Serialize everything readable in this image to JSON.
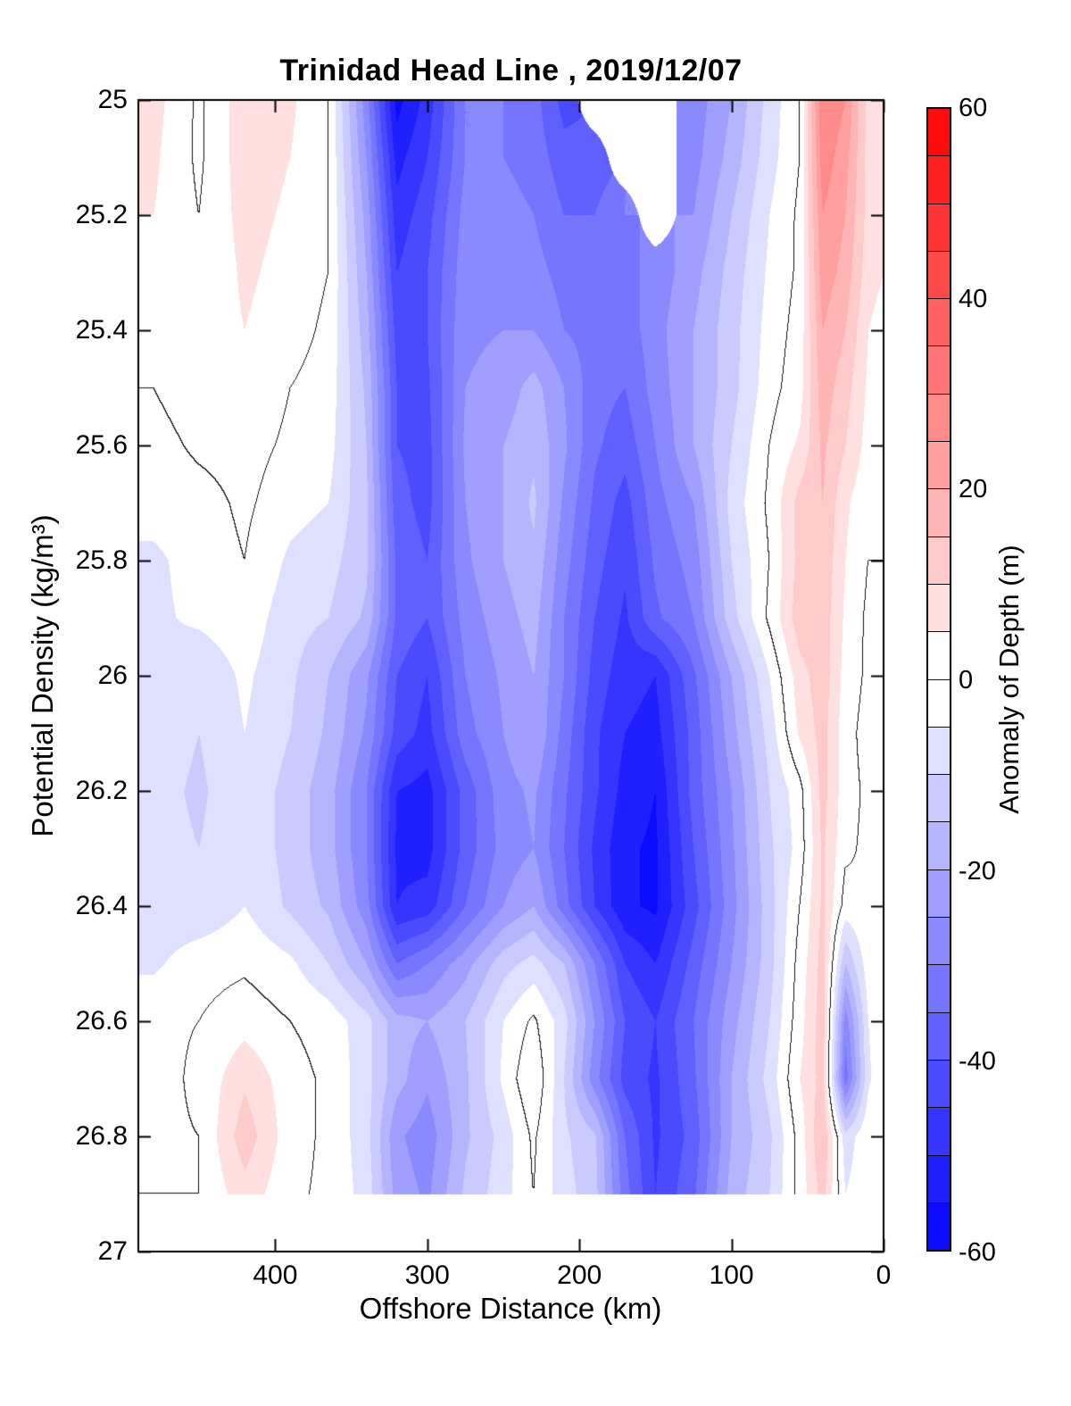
{
  "title": "Trinidad Head Line , 2019/12/07",
  "axes": {
    "xlabel": "Offshore Distance (km)",
    "ylabel": "Potential Density (kg/m³)",
    "x_tick_labels": [
      "400",
      "300",
      "200",
      "100",
      "0"
    ],
    "x_tick_values": [
      400,
      300,
      200,
      100,
      0
    ],
    "y_tick_labels": [
      "25",
      "25.2",
      "25.4",
      "25.6",
      "25.8",
      "26",
      "26.2",
      "26.4",
      "26.6",
      "26.8",
      "27"
    ],
    "y_tick_values": [
      25,
      25.2,
      25.4,
      25.6,
      25.8,
      26,
      26.2,
      26.4,
      26.6,
      26.8,
      27
    ]
  },
  "colorbar": {
    "label": "Anomaly of Depth (m)",
    "tick_labels": [
      "60",
      "40",
      "20",
      "0",
      "-20",
      "-40",
      "-60"
    ],
    "tick_values": [
      60,
      40,
      20,
      0,
      -20,
      -40,
      -60
    ],
    "min": -60,
    "max": 60,
    "step": 5,
    "color_negative": "#0000ff",
    "color_zero": "#ffffff",
    "color_positive": "#ff0000"
  },
  "chart_data": {
    "type": "heatmap",
    "subtype": "filled-contour-section",
    "title": "Trinidad Head Line , 2019/12/07",
    "xlabel": "Offshore Distance (km)",
    "ylabel": "Potential Density (kg/m³)",
    "value_label": "Anomaly of Depth (m)",
    "x_range": [
      0,
      490
    ],
    "x_axis_reversed": true,
    "y_range": [
      25,
      27
    ],
    "y_axis_increases_downward": true,
    "data_y_max": 26.9,
    "contour_interval": 5,
    "value_range": [
      -60,
      60
    ],
    "zero_contour_color": "#000000",
    "grid_note": "values = Anomaly of Depth (m) sampled on x_km (offshore distance) by y_density grid; null = missing data (white)",
    "x_km": [
      480,
      450,
      420,
      390,
      365,
      340,
      320,
      300,
      275,
      250,
      230,
      210,
      190,
      170,
      150,
      125,
      100,
      75,
      55,
      40,
      25,
      10,
      0
    ],
    "y_density": [
      25.0,
      25.1,
      25.2,
      25.3,
      25.4,
      25.5,
      25.6,
      25.7,
      25.8,
      25.9,
      26.0,
      26.1,
      26.2,
      26.3,
      26.4,
      26.5,
      26.6,
      26.7,
      26.8,
      26.9
    ],
    "values": [
      [
        7,
        -1,
        8,
        6,
        0,
        -28,
        -57,
        -48,
        -30,
        -30,
        -33,
        -42,
        null,
        null,
        null,
        -28,
        -20,
        -8,
        0,
        30,
        25,
        8,
        5
      ],
      [
        6,
        -1,
        8,
        5,
        0,
        -25,
        -52,
        -45,
        -30,
        -30,
        -32,
        -38,
        -38,
        null,
        null,
        -27,
        -18,
        -7,
        0,
        28,
        22,
        8,
        5
      ],
      [
        5,
        0,
        7,
        4,
        0,
        -22,
        -48,
        -42,
        -28,
        -28,
        -30,
        -35,
        -35,
        -30,
        null,
        -25,
        -15,
        -5,
        1,
        25,
        20,
        8,
        6
      ],
      [
        4,
        0,
        6,
        3,
        0,
        -20,
        -45,
        -40,
        -27,
        -27,
        -28,
        -32,
        -33,
        -32,
        -28,
        -22,
        -13,
        -4,
        1,
        23,
        18,
        7,
        5
      ],
      [
        3,
        2,
        5,
        2,
        -1,
        -18,
        -42,
        -40,
        -26,
        -25,
        -25,
        -30,
        -32,
        -33,
        -27,
        -20,
        -12,
        -3,
        2,
        20,
        15,
        5,
        3
      ],
      [
        0,
        3,
        4,
        0,
        -2,
        -16,
        -40,
        -41,
        -25,
        -23,
        -18,
        -25,
        -33,
        -35,
        -28,
        -20,
        -12,
        -2,
        3,
        18,
        12,
        4,
        2
      ],
      [
        -2,
        1,
        2,
        -1,
        -3,
        -15,
        -40,
        -42,
        -24,
        -20,
        -16,
        -24,
        -34,
        -38,
        -30,
        -20,
        -10,
        0,
        6,
        16,
        10,
        3,
        1
      ],
      [
        -3,
        -2,
        1,
        -3,
        -5,
        -14,
        -38,
        -42,
        -25,
        -20,
        -14,
        -26,
        -36,
        -42,
        -32,
        -25,
        -8,
        1,
        12,
        15,
        6,
        1,
        0
      ],
      [
        -6,
        -3,
        0,
        -6,
        -8,
        -14,
        -36,
        -40,
        -26,
        -20,
        -16,
        -28,
        -38,
        -44,
        -34,
        -28,
        -10,
        0,
        12,
        14,
        5,
        0,
        0
      ],
      [
        -6,
        -4,
        -2,
        -8,
        -10,
        -16,
        -36,
        -40,
        -28,
        -22,
        -18,
        -30,
        -40,
        -46,
        -36,
        -30,
        -12,
        1,
        13,
        13,
        4,
        -1,
        0
      ],
      [
        -6,
        -9,
        -4,
        -9,
        -15,
        -24,
        -40,
        -45,
        -30,
        -24,
        -20,
        -30,
        -42,
        -48,
        -50,
        -36,
        -20,
        -5,
        8,
        13,
        3,
        -1,
        0
      ],
      [
        -7,
        -10,
        -5,
        -10,
        -16,
        -26,
        -42,
        -47,
        -32,
        -25,
        -20,
        -32,
        -44,
        -50,
        -52,
        -38,
        -22,
        -8,
        6,
        12,
        2,
        -2,
        0
      ],
      [
        -8,
        -11,
        -6,
        -12,
        -18,
        -30,
        -50,
        -52,
        -38,
        -27,
        -24,
        -34,
        -44,
        -52,
        -55,
        -38,
        -25,
        -10,
        -2,
        12,
        2,
        -1,
        0
      ],
      [
        -8,
        -10,
        -6,
        -12,
        -18,
        -30,
        -51,
        -52,
        -38,
        -28,
        -25,
        -35,
        -46,
        -54,
        -56,
        -40,
        -26,
        -11,
        -3,
        11,
        1,
        -1,
        0
      ],
      [
        -8,
        -9,
        -5,
        -11,
        -16,
        -28,
        -50,
        -48,
        -35,
        -25,
        -20,
        -33,
        -45,
        -54,
        -56,
        -42,
        -27,
        -12,
        0,
        11,
        -2,
        0,
        0
      ],
      [
        -6,
        -2,
        -1,
        -4,
        -10,
        -20,
        -35,
        -30,
        -22,
        -12,
        -8,
        -15,
        -30,
        -45,
        -50,
        -38,
        -25,
        -12,
        2,
        12,
        -15,
        -2,
        0
      ],
      [
        -1,
        0,
        3,
        0,
        -2,
        -8,
        -18,
        -20,
        -15,
        -5,
        1,
        -8,
        -25,
        -40,
        -45,
        -35,
        -22,
        -10,
        3,
        13,
        -28,
        -5,
        -1
      ],
      [
        -2,
        1,
        9,
        2,
        -1,
        -8,
        -18,
        -24,
        -16,
        -4,
        5,
        -10,
        -28,
        -42,
        -46,
        -36,
        -20,
        -8,
        5,
        12,
        -33,
        -6,
        -1
      ],
      [
        -1,
        0,
        13,
        2,
        -1,
        -8,
        -24,
        -28,
        -16,
        -8,
        1,
        -9,
        -14,
        -35,
        -46,
        -38,
        -20,
        -11,
        2,
        15,
        -8,
        -1,
        0
      ],
      [
        0,
        0,
        8,
        1,
        -1,
        -7,
        -22,
        -26,
        -14,
        -7,
        0,
        -8,
        -13,
        -33,
        -45,
        -36,
        -18,
        -10,
        2,
        12,
        -5,
        -1,
        0
      ]
    ]
  }
}
